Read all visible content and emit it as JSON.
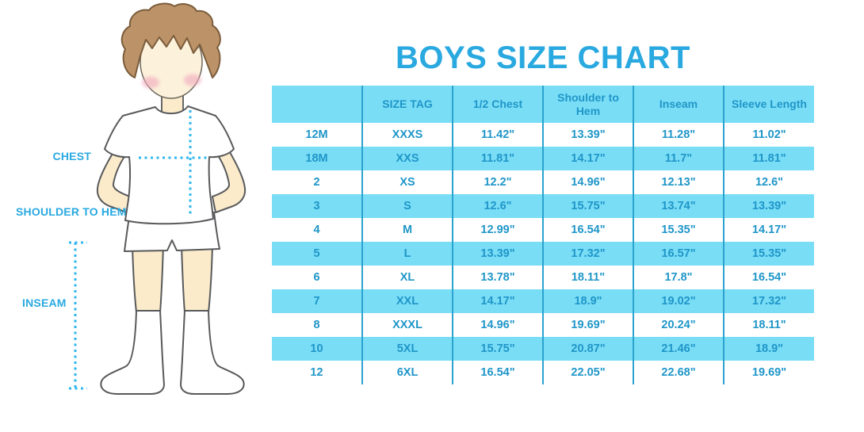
{
  "title": "BOYS SIZE CHART",
  "illustration": {
    "description": "cartoon boy with brown hair, white t-shirt, white shorts and white knee socks, with dotted measurement guide lines",
    "chest_label": "CHEST",
    "shoulder_to_hem_label": "SHOULDER TO HEM",
    "inseam_label": "INSEAM"
  },
  "chart_data": {
    "type": "table",
    "title": "BOYS SIZE CHART",
    "unit": "inches",
    "columns": [
      "",
      "SIZE TAG",
      "1/2 Chest",
      "Shoulder to Hem",
      "Inseam",
      "Sleeve Length"
    ],
    "rows": [
      [
        "12M",
        "XXXS",
        "11.42\"",
        "13.39\"",
        "11.28\"",
        "11.02\""
      ],
      [
        "18M",
        "XXS",
        "11.81\"",
        "14.17\"",
        "11.7\"",
        "11.81\""
      ],
      [
        "2",
        "XS",
        "12.2\"",
        "14.96\"",
        "12.13\"",
        "12.6\""
      ],
      [
        "3",
        "S",
        "12.6\"",
        "15.75\"",
        "13.74\"",
        "13.39\""
      ],
      [
        "4",
        "M",
        "12.99\"",
        "16.54\"",
        "15.35\"",
        "14.17\""
      ],
      [
        "5",
        "L",
        "13.39\"",
        "17.32\"",
        "16.57\"",
        "15.35\""
      ],
      [
        "6",
        "XL",
        "13.78\"",
        "18.11\"",
        "17.8\"",
        "16.54\""
      ],
      [
        "7",
        "XXL",
        "14.17\"",
        "18.9\"",
        "19.02\"",
        "17.32\""
      ],
      [
        "8",
        "XXXL",
        "14.96\"",
        "19.69\"",
        "20.24\"",
        "18.11\""
      ],
      [
        "10",
        "5XL",
        "15.75\"",
        "20.87\"",
        "21.46\"",
        "18.9\""
      ],
      [
        "12",
        "6XL",
        "16.54\"",
        "22.05\"",
        "22.68\"",
        "19.69\""
      ]
    ],
    "layout_hints": {
      "striped_rows": "alternating white and light cyan",
      "header_background": "light cyan",
      "grid": "vertical column separators only"
    }
  },
  "colors": {
    "accent_blue": "#29A9E0",
    "table_text_blue": "#1F96C8",
    "stripe_cyan": "#79DDF6",
    "grid_line": "#2BA3CF",
    "dotted_line": "#2FB7EE",
    "hair_brown": "#BC9368",
    "hair_outline": "#7B5C3C",
    "skin": "#FBEBCB",
    "blush_pink": "#F1A7BD",
    "outline_gray": "#58595B"
  }
}
